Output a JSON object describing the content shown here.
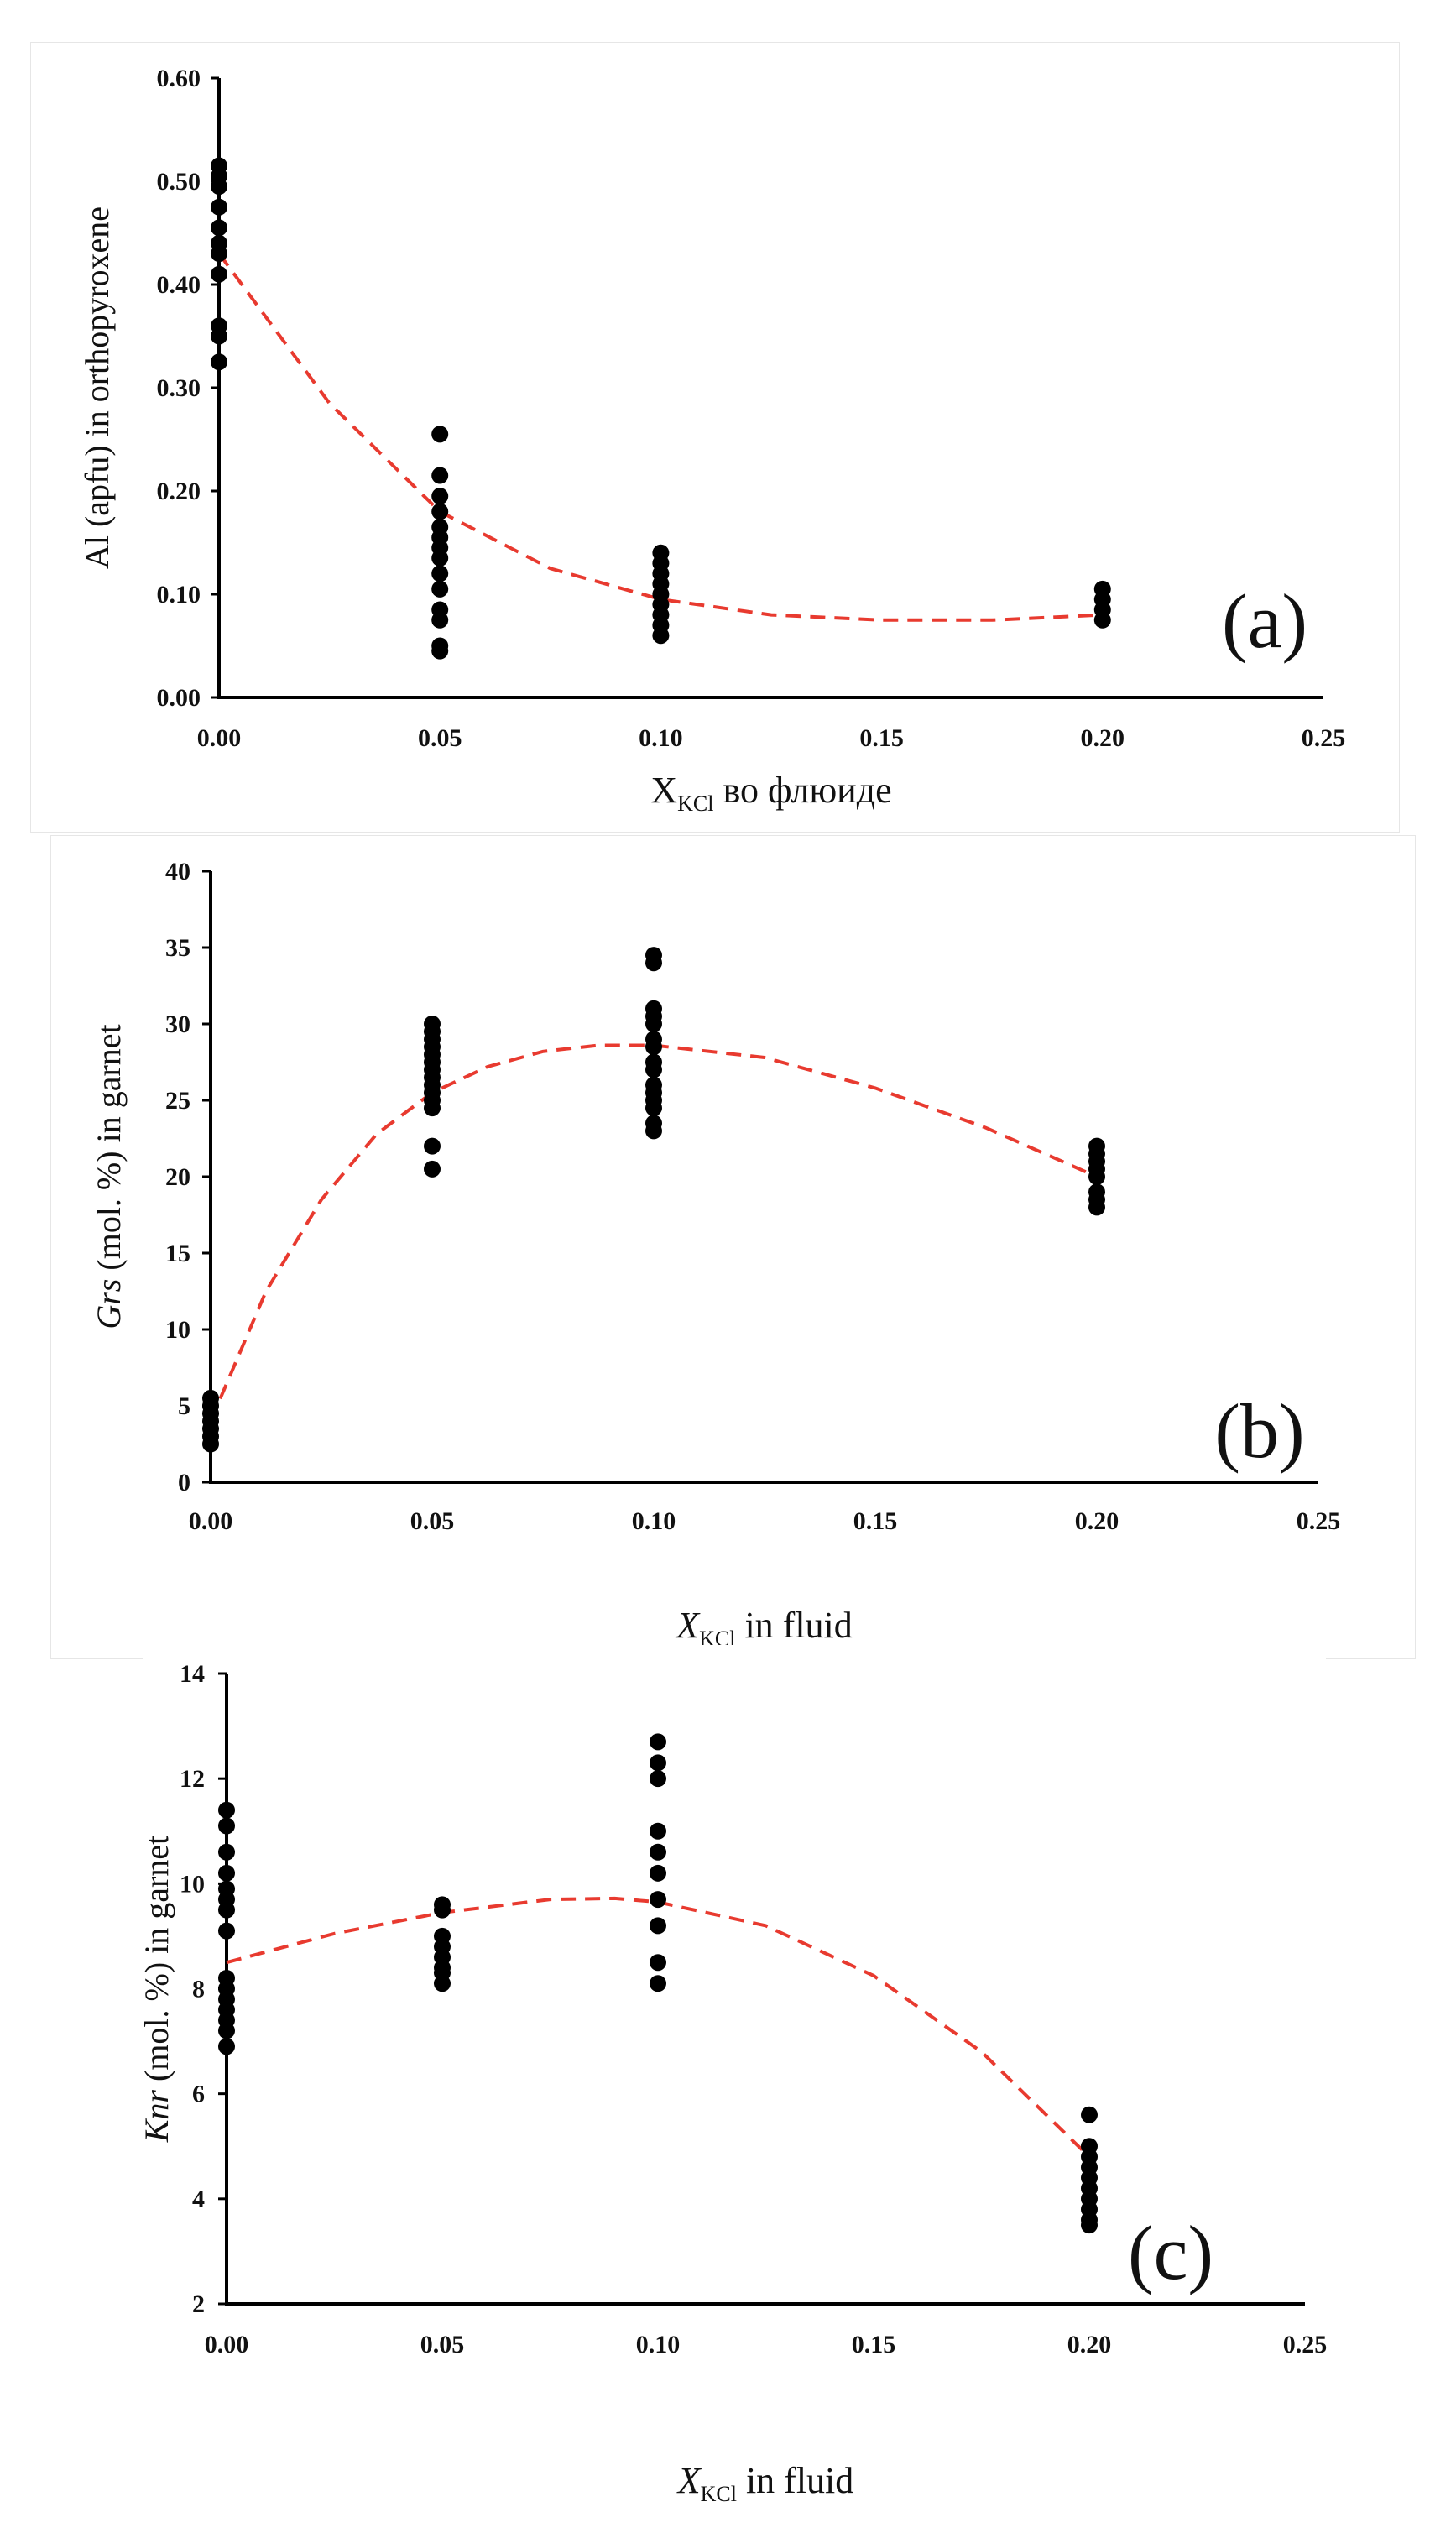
{
  "chart_data": [
    {
      "id": "a",
      "type": "scatter",
      "panel_label": "(a)",
      "ylabel": "Al (apfu) in orthopyroxene",
      "xlabel_main": "X",
      "xlabel_sub": "KCl",
      "xlabel_rest": " во флюиде",
      "xlabel_italic": false,
      "xlim": [
        0,
        0.25
      ],
      "ylim": [
        0,
        0.6
      ],
      "xticks": [
        0,
        0.05,
        0.1,
        0.15,
        0.2,
        0.25
      ],
      "xtick_labels": [
        "0.00",
        "0.05",
        "0.10",
        "0.15",
        "0.20",
        "0.25"
      ],
      "yticks": [
        0,
        0.1,
        0.2,
        0.3,
        0.4,
        0.5,
        0.6
      ],
      "ytick_labels": [
        "0.00",
        "0.10",
        "0.20",
        "0.30",
        "0.40",
        "0.50",
        "0.60"
      ],
      "points": [
        [
          0,
          0.515
        ],
        [
          0,
          0.505
        ],
        [
          0,
          0.495
        ],
        [
          0,
          0.475
        ],
        [
          0,
          0.455
        ],
        [
          0,
          0.44
        ],
        [
          0,
          0.43
        ],
        [
          0,
          0.41
        ],
        [
          0,
          0.36
        ],
        [
          0,
          0.35
        ],
        [
          0,
          0.325
        ],
        [
          0.05,
          0.255
        ],
        [
          0.05,
          0.215
        ],
        [
          0.05,
          0.195
        ],
        [
          0.05,
          0.18
        ],
        [
          0.05,
          0.165
        ],
        [
          0.05,
          0.155
        ],
        [
          0.05,
          0.145
        ],
        [
          0.05,
          0.135
        ],
        [
          0.05,
          0.12
        ],
        [
          0.05,
          0.105
        ],
        [
          0.05,
          0.085
        ],
        [
          0.05,
          0.075
        ],
        [
          0.05,
          0.05
        ],
        [
          0.05,
          0.045
        ],
        [
          0.1,
          0.14
        ],
        [
          0.1,
          0.13
        ],
        [
          0.1,
          0.12
        ],
        [
          0.1,
          0.11
        ],
        [
          0.1,
          0.1
        ],
        [
          0.1,
          0.09
        ],
        [
          0.1,
          0.08
        ],
        [
          0.1,
          0.07
        ],
        [
          0.1,
          0.06
        ],
        [
          0.2,
          0.105
        ],
        [
          0.2,
          0.095
        ],
        [
          0.2,
          0.085
        ],
        [
          0.2,
          0.075
        ]
      ],
      "fit": [
        [
          0,
          0.43
        ],
        [
          0.025,
          0.285
        ],
        [
          0.05,
          0.18
        ],
        [
          0.075,
          0.125
        ],
        [
          0.1,
          0.095
        ],
        [
          0.125,
          0.08
        ],
        [
          0.15,
          0.075
        ],
        [
          0.175,
          0.075
        ],
        [
          0.2,
          0.08
        ]
      ]
    },
    {
      "id": "b",
      "type": "scatter",
      "panel_label": "(b)",
      "ylabel_italic": "Grs",
      "ylabel": " (mol. %) in garnet",
      "xlabel_main": "X",
      "xlabel_sub": "KCl",
      "xlabel_rest": " in fluid",
      "xlabel_italic": true,
      "xlim": [
        0,
        0.25
      ],
      "ylim": [
        0,
        40
      ],
      "xticks": [
        0,
        0.05,
        0.1,
        0.15,
        0.2,
        0.25
      ],
      "xtick_labels": [
        "0.00",
        "0.05",
        "0.10",
        "0.15",
        "0.20",
        "0.25"
      ],
      "yticks": [
        0,
        5,
        10,
        15,
        20,
        25,
        30,
        35,
        40
      ],
      "ytick_labels": [
        "0",
        "5",
        "10",
        "15",
        "20",
        "25",
        "30",
        "35",
        "40"
      ],
      "points": [
        [
          0,
          5.5
        ],
        [
          0,
          5
        ],
        [
          0,
          4.5
        ],
        [
          0,
          4
        ],
        [
          0,
          3.5
        ],
        [
          0,
          3
        ],
        [
          0,
          2.5
        ],
        [
          0.05,
          30
        ],
        [
          0.05,
          29.5
        ],
        [
          0.05,
          29
        ],
        [
          0.05,
          28.5
        ],
        [
          0.05,
          28
        ],
        [
          0.05,
          27.5
        ],
        [
          0.05,
          27
        ],
        [
          0.05,
          26.5
        ],
        [
          0.05,
          26
        ],
        [
          0.05,
          25.5
        ],
        [
          0.05,
          25
        ],
        [
          0.05,
          24.5
        ],
        [
          0.05,
          22
        ],
        [
          0.05,
          20.5
        ],
        [
          0.1,
          34.5
        ],
        [
          0.1,
          34
        ],
        [
          0.1,
          31
        ],
        [
          0.1,
          30.5
        ],
        [
          0.1,
          30
        ],
        [
          0.1,
          29
        ],
        [
          0.1,
          28.5
        ],
        [
          0.1,
          27.5
        ],
        [
          0.1,
          27
        ],
        [
          0.1,
          26
        ],
        [
          0.1,
          25.5
        ],
        [
          0.1,
          25
        ],
        [
          0.1,
          24.5
        ],
        [
          0.1,
          23.5
        ],
        [
          0.1,
          23
        ],
        [
          0.2,
          22
        ],
        [
          0.2,
          21.5
        ],
        [
          0.2,
          21
        ],
        [
          0.2,
          20.5
        ],
        [
          0.2,
          20
        ],
        [
          0.2,
          19
        ],
        [
          0.2,
          18.5
        ],
        [
          0.2,
          18
        ]
      ],
      "fit": [
        [
          0,
          4
        ],
        [
          0.0125,
          12.5
        ],
        [
          0.025,
          18.5
        ],
        [
          0.0375,
          22.8
        ],
        [
          0.05,
          25.5
        ],
        [
          0.0625,
          27.2
        ],
        [
          0.075,
          28.2
        ],
        [
          0.0875,
          28.6
        ],
        [
          0.1,
          28.6
        ],
        [
          0.125,
          27.8
        ],
        [
          0.15,
          25.8
        ],
        [
          0.175,
          23.2
        ],
        [
          0.2,
          20
        ]
      ]
    },
    {
      "id": "c",
      "type": "scatter",
      "panel_label": "(c)",
      "ylabel_italic": "Knr",
      "ylabel": " (mol. %) in garnet",
      "xlabel_main": "X",
      "xlabel_sub": "KCl",
      "xlabel_rest": " in fluid",
      "xlabel_italic": true,
      "xlim": [
        0,
        0.25
      ],
      "ylim": [
        2,
        14
      ],
      "xticks": [
        0,
        0.05,
        0.1,
        0.15,
        0.2,
        0.25
      ],
      "xtick_labels": [
        "0.00",
        "0.05",
        "0.10",
        "0.15",
        "0.20",
        "0.25"
      ],
      "yticks": [
        2,
        4,
        6,
        8,
        10,
        12,
        14
      ],
      "ytick_labels": [
        "2",
        "4",
        "6",
        "8",
        "10",
        "12",
        "14"
      ],
      "points": [
        [
          0,
          11.4
        ],
        [
          0,
          11.1
        ],
        [
          0,
          10.6
        ],
        [
          0,
          10.2
        ],
        [
          0,
          9.9
        ],
        [
          0,
          9.7
        ],
        [
          0,
          9.5
        ],
        [
          0,
          9.1
        ],
        [
          0,
          8.2
        ],
        [
          0,
          8
        ],
        [
          0,
          7.8
        ],
        [
          0,
          7.6
        ],
        [
          0,
          7.4
        ],
        [
          0,
          7.2
        ],
        [
          0,
          6.9
        ],
        [
          0.05,
          9.6
        ],
        [
          0.05,
          9.5
        ],
        [
          0.05,
          9
        ],
        [
          0.05,
          8.8
        ],
        [
          0.05,
          8.6
        ],
        [
          0.05,
          8.4
        ],
        [
          0.05,
          8.3
        ],
        [
          0.05,
          8.1
        ],
        [
          0.1,
          12.7
        ],
        [
          0.1,
          12.3
        ],
        [
          0.1,
          12
        ],
        [
          0.1,
          11
        ],
        [
          0.1,
          10.6
        ],
        [
          0.1,
          10.2
        ],
        [
          0.1,
          9.7
        ],
        [
          0.1,
          9.2
        ],
        [
          0.1,
          8.5
        ],
        [
          0.1,
          8.1
        ],
        [
          0.2,
          5.6
        ],
        [
          0.2,
          5
        ],
        [
          0.2,
          4.8
        ],
        [
          0.2,
          4.6
        ],
        [
          0.2,
          4.4
        ],
        [
          0.2,
          4.2
        ],
        [
          0.2,
          4
        ],
        [
          0.2,
          3.8
        ],
        [
          0.2,
          3.6
        ],
        [
          0.2,
          3.5
        ]
      ],
      "fit": [
        [
          0,
          8.5
        ],
        [
          0.025,
          9.05
        ],
        [
          0.05,
          9.45
        ],
        [
          0.075,
          9.7
        ],
        [
          0.09,
          9.72
        ],
        [
          0.1,
          9.65
        ],
        [
          0.125,
          9.2
        ],
        [
          0.15,
          8.25
        ],
        [
          0.175,
          6.8
        ],
        [
          0.2,
          4.8
        ]
      ]
    }
  ]
}
